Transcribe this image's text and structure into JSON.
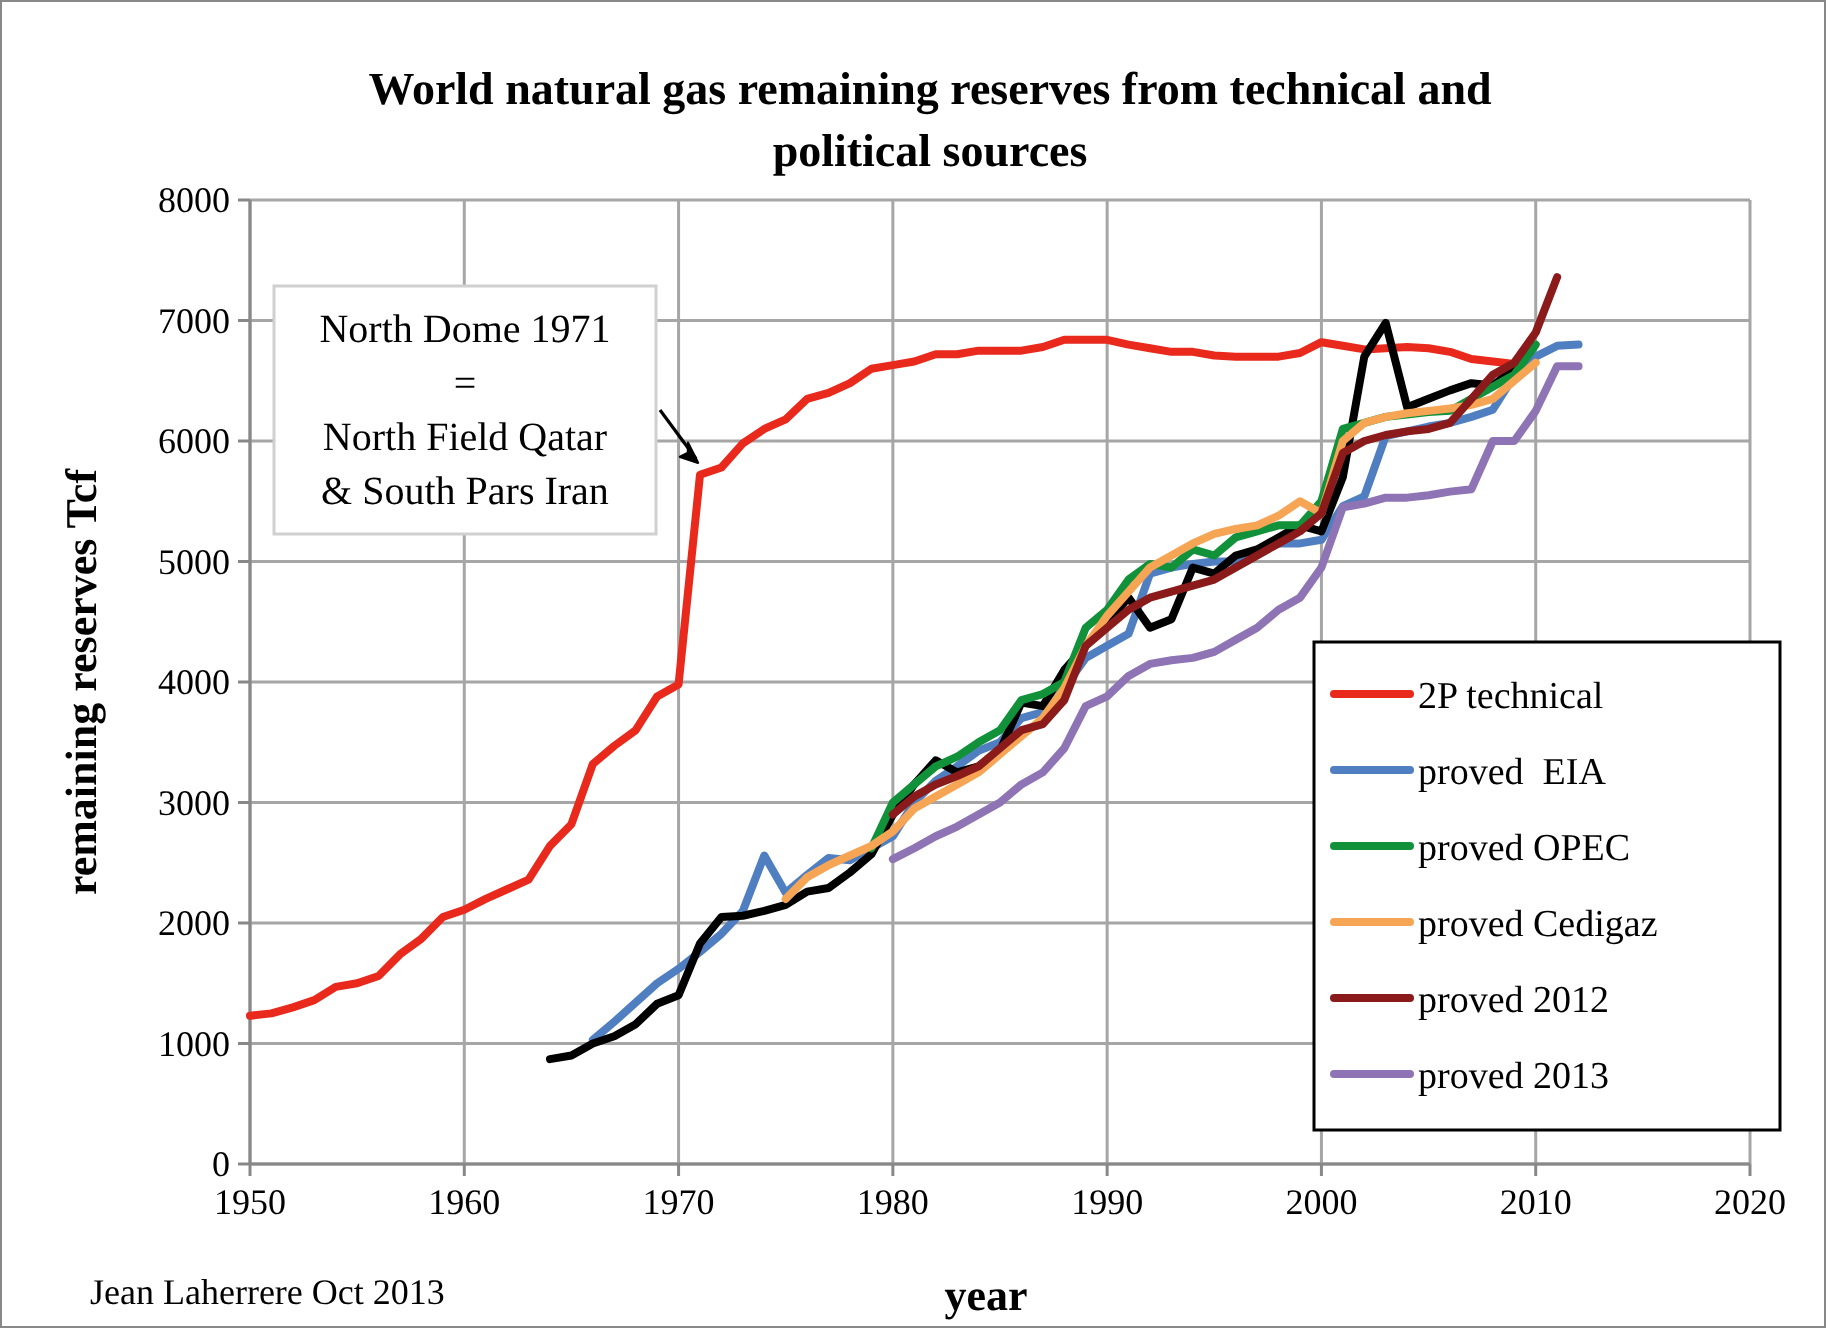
{
  "chart_data": {
    "type": "line",
    "title": "World natural gas remaining reserves from technical and political sources",
    "xlabel": "year",
    "ylabel": "remaining reserves Tcf",
    "annotations": [
      {
        "text": "North Dome 1971\n=\nNorth Field Qatar\n& South Pars Iran",
        "x": 1971,
        "y": 5720
      },
      "Jean Laherrere Oct 2013"
    ],
    "xlim": [
      1950,
      2020
    ],
    "xticks": [
      1950,
      1960,
      1970,
      1980,
      1990,
      2000,
      2010,
      2020
    ],
    "ylim": [
      0,
      8000
    ],
    "yticks": [
      0,
      1000,
      2000,
      3000,
      4000,
      5000,
      6000,
      7000,
      8000
    ],
    "grid": true,
    "legend": "bottom right",
    "line_style": "solid",
    "marker": "none",
    "series": [
      {
        "name": "2P technical",
        "color": "#e8291c",
        "x": [
          1950,
          1951,
          1952,
          1953,
          1954,
          1955,
          1956,
          1957,
          1958,
          1959,
          1960,
          1961,
          1962,
          1963,
          1964,
          1965,
          1966,
          1967,
          1968,
          1969,
          1970,
          1971,
          1972,
          1973,
          1974,
          1975,
          1976,
          1977,
          1978,
          1979,
          1980,
          1981,
          1982,
          1983,
          1984,
          1985,
          1986,
          1987,
          1988,
          1989,
          1990,
          1991,
          1992,
          1993,
          1994,
          1995,
          1996,
          1997,
          1998,
          1999,
          2000,
          2001,
          2002,
          2003,
          2004,
          2005,
          2006,
          2007,
          2008,
          2009
        ],
        "values": [
          1230,
          1250,
          1300,
          1360,
          1470,
          1500,
          1560,
          1740,
          1870,
          2050,
          2110,
          2200,
          2280,
          2360,
          2640,
          2820,
          3320,
          3470,
          3600,
          3880,
          3980,
          5720,
          5780,
          5980,
          6100,
          6180,
          6350,
          6400,
          6480,
          6600,
          6630,
          6660,
          6720,
          6720,
          6750,
          6750,
          6750,
          6780,
          6840,
          6840,
          6840,
          6800,
          6770,
          6740,
          6740,
          6710,
          6700,
          6700,
          6700,
          6730,
          6820,
          6790,
          6760,
          6770,
          6780,
          6770,
          6740,
          6680,
          6660,
          6640
        ]
      },
      {
        "name": "proved  EIA",
        "color": "#4f7fc0",
        "x": [
          1966,
          1967,
          1968,
          1969,
          1970,
          1971,
          1972,
          1973,
          1974,
          1975,
          1976,
          1977,
          1978,
          1979,
          1980,
          1981,
          1982,
          1983,
          1984,
          1985,
          1986,
          1987,
          1988,
          1989,
          1990,
          1991,
          1992,
          1993,
          1994,
          1995,
          1996,
          1997,
          1998,
          1999,
          2000,
          2001,
          2002,
          2003,
          2004,
          2005,
          2006,
          2007,
          2008,
          2009,
          2010,
          2011,
          2012
        ],
        "values": [
          1030,
          1180,
          1340,
          1500,
          1620,
          1760,
          1910,
          2100,
          2560,
          2250,
          2400,
          2540,
          2520,
          2620,
          2720,
          3000,
          3180,
          3300,
          3430,
          3500,
          3700,
          3750,
          3950,
          4200,
          4300,
          4400,
          4900,
          4950,
          4980,
          5000,
          5000,
          5080,
          5150,
          5150,
          5180,
          5460,
          5540,
          6040,
          6080,
          6120,
          6150,
          6200,
          6260,
          6540,
          6700,
          6790,
          6800
        ]
      },
      {
        "color": "#000000",
        "x": [
          1964,
          1965,
          1966,
          1967,
          1968,
          1969,
          1970,
          1971,
          1972,
          1973,
          1974,
          1975,
          1976,
          1977,
          1978,
          1979,
          1980,
          1981,
          1982,
          1983,
          1984,
          1985,
          1986,
          1987,
          1988,
          1989,
          1990,
          1991,
          1992,
          1993,
          1994,
          1995,
          1996,
          1997,
          1998,
          1999,
          2000,
          2001,
          2002,
          2003,
          2004,
          2005,
          2006,
          2007,
          2008,
          2009
        ],
        "values": [
          870,
          900,
          1000,
          1060,
          1160,
          1330,
          1400,
          1830,
          2050,
          2060,
          2100,
          2150,
          2260,
          2290,
          2420,
          2570,
          2900,
          3150,
          3350,
          3250,
          3300,
          3430,
          3830,
          3800,
          4100,
          4300,
          4500,
          4700,
          4450,
          4520,
          4950,
          4900,
          5050,
          5100,
          5200,
          5300,
          5250,
          5700,
          6700,
          6980,
          6280,
          6350,
          6420,
          6480,
          6460,
          6600
        ]
      },
      {
        "name": "proved OPEC",
        "color": "#10913a",
        "x": [
          1979,
          1980,
          1981,
          1982,
          1983,
          1984,
          1985,
          1986,
          1987,
          1988,
          1989,
          1990,
          1991,
          1992,
          1993,
          1994,
          1995,
          1996,
          1997,
          1998,
          1999,
          2000,
          2001,
          2002,
          2003,
          2004,
          2005,
          2006,
          2007,
          2008,
          2009,
          2010
        ],
        "values": [
          2620,
          3000,
          3150,
          3300,
          3380,
          3500,
          3600,
          3850,
          3900,
          4000,
          4450,
          4600,
          4850,
          4980,
          4950,
          5100,
          5050,
          5200,
          5250,
          5300,
          5300,
          5500,
          6100,
          6150,
          6200,
          6220,
          6240,
          6250,
          6350,
          6450,
          6550,
          6800
        ]
      },
      {
        "name": "proved Cedigaz",
        "color": "#f6a555",
        "x": [
          1975,
          1976,
          1977,
          1978,
          1979,
          1980,
          1981,
          1982,
          1983,
          1984,
          1985,
          1986,
          1987,
          1988,
          1989,
          1990,
          1991,
          1992,
          1993,
          1994,
          1995,
          1996,
          1997,
          1998,
          1999,
          2000,
          2001,
          2002,
          2003,
          2004,
          2005,
          2006,
          2007,
          2008,
          2009,
          2010
        ],
        "values": [
          2200,
          2380,
          2480,
          2560,
          2640,
          2760,
          2950,
          3050,
          3150,
          3250,
          3400,
          3550,
          3700,
          3950,
          4300,
          4550,
          4750,
          4950,
          5050,
          5150,
          5230,
          5270,
          5300,
          5380,
          5500,
          5400,
          6000,
          6150,
          6200,
          6230,
          6250,
          6270,
          6300,
          6350,
          6500,
          6650
        ]
      },
      {
        "name": "proved 2012",
        "color": "#8b1a1a",
        "x": [
          1980,
          1981,
          1982,
          1983,
          1984,
          1985,
          1986,
          1987,
          1988,
          1989,
          1990,
          1991,
          1992,
          1993,
          1994,
          1995,
          1996,
          1997,
          1998,
          1999,
          2000,
          2001,
          2002,
          2003,
          2004,
          2005,
          2006,
          2007,
          2008,
          2009,
          2010,
          2011
        ],
        "values": [
          2900,
          3050,
          3150,
          3220,
          3300,
          3450,
          3600,
          3650,
          3850,
          4300,
          4450,
          4600,
          4700,
          4750,
          4800,
          4850,
          4950,
          5050,
          5150,
          5250,
          5400,
          5900,
          6000,
          6050,
          6080,
          6100,
          6150,
          6350,
          6550,
          6650,
          6900,
          7360
        ]
      },
      {
        "name": "proved 2013",
        "color": "#8e74b5",
        "x": [
          1980,
          1981,
          1982,
          1983,
          1984,
          1985,
          1986,
          1987,
          1988,
          1989,
          1990,
          1991,
          1992,
          1993,
          1994,
          1995,
          1996,
          1997,
          1998,
          1999,
          2000,
          2001,
          2002,
          2003,
          2004,
          2005,
          2006,
          2007,
          2008,
          2009,
          2010,
          2011,
          2012
        ],
        "values": [
          2530,
          2620,
          2720,
          2800,
          2900,
          3000,
          3150,
          3250,
          3450,
          3800,
          3880,
          4050,
          4150,
          4180,
          4200,
          4250,
          4350,
          4450,
          4600,
          4700,
          4950,
          5450,
          5480,
          5530,
          5530,
          5550,
          5580,
          5600,
          6000,
          6000,
          6250,
          6620,
          6620
        ]
      }
    ]
  }
}
